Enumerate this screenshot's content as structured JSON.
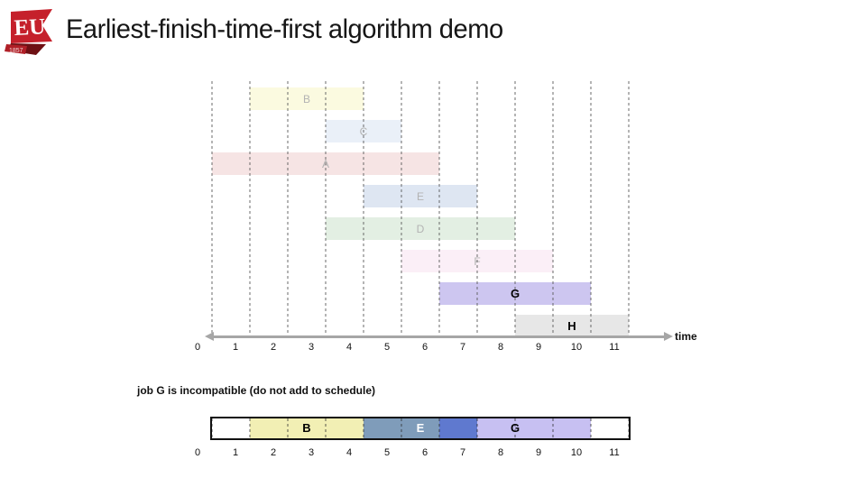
{
  "header": {
    "title": "Earliest-finish-time-first algorithm demo",
    "logo": {
      "text": "EU",
      "year": "1857"
    }
  },
  "chart_data": {
    "type": "gantt",
    "time_axis": {
      "min": 0,
      "max": 11,
      "label": "time",
      "ticks": [
        0,
        1,
        2,
        3,
        4,
        5,
        6,
        7,
        8,
        9,
        10,
        11
      ]
    },
    "jobs": [
      {
        "label": "B",
        "start": 1,
        "finish": 4,
        "color": "#fbfae0",
        "text_color": "#b3b3b3",
        "bold": false
      },
      {
        "label": "C",
        "start": 3,
        "finish": 5,
        "color": "#eaf0f8",
        "text_color": "#b3b3b3",
        "bold": false
      },
      {
        "label": "A",
        "start": 0,
        "finish": 6,
        "color": "#f6e4e4",
        "text_color": "#b3b3b3",
        "bold": false
      },
      {
        "label": "E",
        "start": 4,
        "finish": 7,
        "color": "#dee6f2",
        "text_color": "#b3b3b3",
        "bold": false
      },
      {
        "label": "D",
        "start": 3,
        "finish": 8,
        "color": "#e3efe3",
        "text_color": "#b3b3b3",
        "bold": false
      },
      {
        "label": "F",
        "start": 5,
        "finish": 9,
        "color": "#fbeff7",
        "text_color": "#b3b3b3",
        "bold": false
      },
      {
        "label": "G",
        "start": 6,
        "finish": 10,
        "color": "#cdc6f0",
        "text_color": "#000000",
        "bold": true
      },
      {
        "label": "H",
        "start": 8,
        "finish": 11,
        "color": "#e7e7e7",
        "text_color": "#000000",
        "bold": true
      }
    ],
    "status_caption": "job G is incompatible (do not add to schedule)",
    "schedule_bar": {
      "range": [
        0,
        11
      ],
      "ticks": [
        0,
        1,
        2,
        3,
        4,
        5,
        6,
        7,
        8,
        9,
        10,
        11
      ],
      "segments": [
        {
          "job": "B",
          "start": 1,
          "end": 4,
          "color": "#f2efb4"
        },
        {
          "job": "E",
          "start": 4,
          "end": 6,
          "color": "#7f9cba"
        },
        {
          "job": "G-over-E",
          "start": 6,
          "end": 7,
          "color": "#5f79cf"
        },
        {
          "job": "G",
          "start": 7,
          "end": 10,
          "color": "#c7c0f2"
        }
      ],
      "labels": [
        {
          "text": "B",
          "t": 2.5,
          "color": "#000000"
        },
        {
          "text": "E",
          "t": 5.5,
          "color": "#ffffff"
        },
        {
          "text": "G",
          "t": 8,
          "color": "#000000"
        }
      ]
    }
  }
}
